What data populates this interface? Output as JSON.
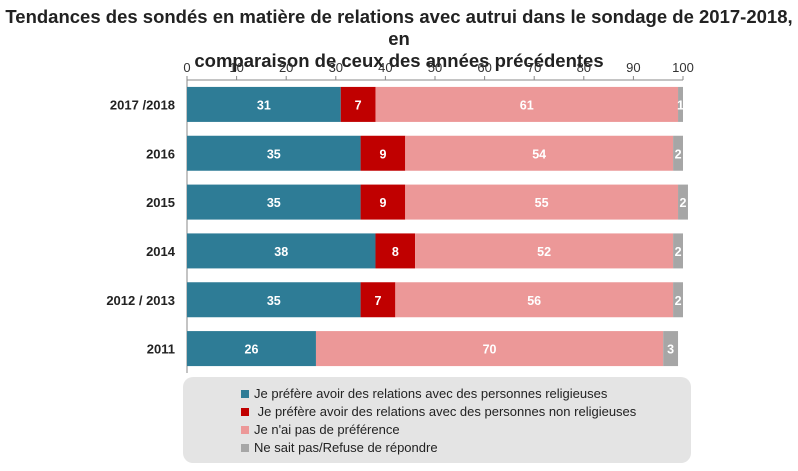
{
  "chart_data": {
    "type": "bar",
    "orientation": "horizontal",
    "stacked": true,
    "title": [
      "Tendances des sondés en matière de relations avec autrui dans le sondage de 2017-2018, en",
      "comparaison de ceux des années précédentes"
    ],
    "xlim": [
      0,
      100
    ],
    "x_ticks": [
      "0",
      "10",
      "20",
      "30",
      "40",
      "50",
      "60",
      "70",
      "80",
      "90",
      "100"
    ],
    "categories": [
      "2017 /2018",
      "2016",
      "2015",
      "2014",
      "2012 / 2013",
      "2011"
    ],
    "series": [
      {
        "name": "Je préfère avoir des relations avec des personnes religieuses",
        "color": "#2e7c96",
        "values": [
          31,
          35,
          35,
          38,
          35,
          26
        ]
      },
      {
        "name": " Je préfère avoir des relations avec des personnes non religieuses",
        "color": "#c00000",
        "values": [
          7,
          9,
          9,
          8,
          7,
          0
        ]
      },
      {
        "name": "Je n'ai pas de préférence",
        "color": "#ec9898",
        "values": [
          61,
          54,
          55,
          52,
          56,
          70
        ]
      },
      {
        "name": "Ne sait pas/Refuse de répondre",
        "color": "#a6a6a6",
        "values": [
          1,
          2,
          2,
          2,
          2,
          3
        ]
      }
    ],
    "legend_position": "bottom"
  }
}
